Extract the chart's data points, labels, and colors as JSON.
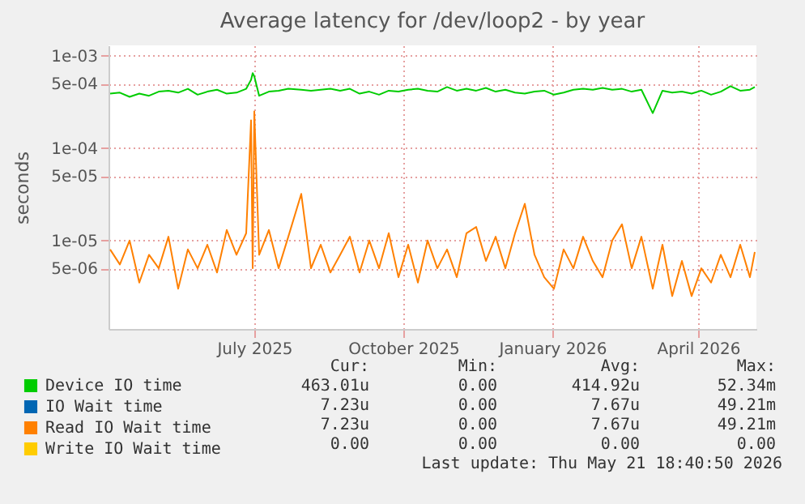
{
  "chart_data": {
    "type": "line",
    "title": "Average latency for /dev/loop2 - by year",
    "ylabel": "seconds",
    "log": "y",
    "grid": true,
    "legend": "bottom",
    "marker": "none",
    "line_style": "solid",
    "xlim": [
      "2025-04-16",
      "2026-05-21"
    ],
    "xticks": [
      {
        "value": "2025-07-15",
        "label": "July 2025"
      },
      {
        "value": "2025-10-15",
        "label": "October 2025"
      },
      {
        "value": "2026-01-15",
        "label": "January 2026"
      },
      {
        "value": "2026-04-15",
        "label": "April 2026"
      }
    ],
    "ylim": [
      1.1e-06,
      0.0013
    ],
    "yticks": [
      {
        "value": 5e-06,
        "label": "5e-06"
      },
      {
        "value": 1e-05,
        "label": "1e-05"
      },
      {
        "value": 5e-05,
        "label": "5e-05"
      },
      {
        "value": 0.0001,
        "label": "1e-04"
      },
      {
        "value": 0.0005,
        "label": "5e-04"
      },
      {
        "value": 0.001,
        "label": "1e-03"
      }
    ],
    "x": [
      "2025-04-17",
      "2025-04-23",
      "2025-04-29",
      "2025-05-05",
      "2025-05-11",
      "2025-05-17",
      "2025-05-23",
      "2025-05-29",
      "2025-06-04",
      "2025-06-10",
      "2025-06-16",
      "2025-06-22",
      "2025-06-28",
      "2025-07-04",
      "2025-07-10",
      "2025-07-13",
      "2025-07-14",
      "2025-07-15",
      "2025-07-18",
      "2025-07-24",
      "2025-07-30",
      "2025-08-05",
      "2025-08-13",
      "2025-08-19",
      "2025-08-25",
      "2025-08-31",
      "2025-09-06",
      "2025-09-12",
      "2025-09-18",
      "2025-09-24",
      "2025-09-30",
      "2025-10-06",
      "2025-10-12",
      "2025-10-18",
      "2025-10-24",
      "2025-10-30",
      "2025-11-05",
      "2025-11-11",
      "2025-11-17",
      "2025-11-23",
      "2025-11-29",
      "2025-12-05",
      "2025-12-11",
      "2025-12-17",
      "2025-12-23",
      "2025-12-29",
      "2026-01-04",
      "2026-01-10",
      "2026-01-16",
      "2026-01-22",
      "2026-01-28",
      "2026-02-03",
      "2026-02-09",
      "2026-02-15",
      "2026-02-21",
      "2026-02-27",
      "2026-03-05",
      "2026-03-11",
      "2026-03-18",
      "2026-03-24",
      "2026-03-30",
      "2026-04-05",
      "2026-04-11",
      "2026-04-17",
      "2026-04-23",
      "2026-04-29",
      "2026-05-05",
      "2026-05-11",
      "2026-05-17",
      "2026-05-20"
    ],
    "series": [
      {
        "name": "Device IO time",
        "color": "#00cc00",
        "values": [
          0.00039,
          0.0004,
          0.00036,
          0.00039,
          0.00037,
          0.00041,
          0.00042,
          0.0004,
          0.00044,
          0.00038,
          0.00041,
          0.00043,
          0.00039,
          0.0004,
          0.00044,
          0.00055,
          0.00065,
          0.0006,
          0.00037,
          0.00041,
          0.00042,
          0.00044,
          0.00043,
          0.00042,
          0.00043,
          0.00044,
          0.00042,
          0.00044,
          0.00039,
          0.00041,
          0.00038,
          0.00042,
          0.00041,
          0.00043,
          0.00044,
          0.00042,
          0.00041,
          0.00046,
          0.00042,
          0.00044,
          0.00042,
          0.00045,
          0.00041,
          0.00043,
          0.0004,
          0.00039,
          0.00041,
          0.00042,
          0.00038,
          0.0004,
          0.00043,
          0.00044,
          0.00043,
          0.00045,
          0.00043,
          0.00044,
          0.00041,
          0.00043,
          0.00024,
          0.00042,
          0.0004,
          0.00041,
          0.00039,
          0.00042,
          0.00038,
          0.00041,
          0.00047,
          0.00042,
          0.00043,
          0.00046
        ]
      },
      {
        "name": "IO Wait time",
        "color": "#0066b3",
        "values": [
          null,
          null,
          null,
          null,
          null,
          null,
          null,
          null,
          null,
          null,
          null,
          null,
          null,
          null,
          null,
          null,
          null,
          null,
          null,
          null,
          null,
          null,
          null,
          null,
          null,
          null,
          null,
          null,
          null,
          null,
          null,
          null,
          null,
          null,
          null,
          null,
          null,
          null,
          null,
          null,
          null,
          null,
          null,
          null,
          null,
          null,
          null,
          null,
          null,
          null,
          null,
          null,
          null,
          null,
          null,
          null,
          null,
          null,
          null,
          null,
          null,
          null,
          null,
          null,
          null,
          null,
          null,
          null,
          null,
          null
        ]
      },
      {
        "name": "Read IO Wait time",
        "color": "#ff8000",
        "values": [
          8e-06,
          5.5e-06,
          1e-05,
          3.5e-06,
          7e-06,
          5e-06,
          1.1e-05,
          3e-06,
          8e-06,
          5e-06,
          9e-06,
          4.5e-06,
          1.3e-05,
          7e-06,
          1.2e-05,
          0.0002,
          5e-06,
          0.00025,
          7e-06,
          1.3e-05,
          5e-06,
          1.1e-05,
          3.2e-05,
          5e-06,
          9e-06,
          4.5e-06,
          7e-06,
          1.1e-05,
          4.5e-06,
          1e-05,
          5e-06,
          1.2e-05,
          4e-06,
          9e-06,
          3.5e-06,
          1e-05,
          5e-06,
          8e-06,
          4e-06,
          1.2e-05,
          1.4e-05,
          6e-06,
          1.1e-05,
          5e-06,
          1.2e-05,
          2.5e-05,
          7e-06,
          4e-06,
          3e-06,
          8e-06,
          5e-06,
          1.1e-05,
          6e-06,
          4e-06,
          1e-05,
          1.5e-05,
          5e-06,
          1.1e-05,
          3e-06,
          9e-06,
          2.5e-06,
          6e-06,
          2.5e-06,
          5e-06,
          3.5e-06,
          7e-06,
          4e-06,
          9e-06,
          4e-06,
          7.5e-06
        ]
      },
      {
        "name": "Write IO Wait time",
        "color": "#ffcc00",
        "values": [
          null,
          null,
          null,
          null,
          null,
          null,
          null,
          null,
          null,
          null,
          null,
          null,
          null,
          null,
          null,
          null,
          null,
          null,
          null,
          null,
          null,
          null,
          null,
          null,
          null,
          null,
          null,
          null,
          null,
          null,
          null,
          null,
          null,
          null,
          null,
          null,
          null,
          null,
          null,
          null,
          null,
          null,
          null,
          null,
          null,
          null,
          null,
          null,
          null,
          null,
          null,
          null,
          null,
          null,
          null,
          null,
          null,
          null,
          null,
          null,
          null,
          null,
          null,
          null,
          null,
          null,
          null,
          null,
          null,
          null
        ]
      }
    ],
    "annotations": [
      "Cur:",
      "Min:",
      "Avg:",
      "Max:",
      "463.01u",
      "0.00",
      "414.92u",
      "52.34m",
      "7.23u",
      "0.00",
      "7.67u",
      "49.21m",
      "7.23u",
      "0.00",
      "7.67u",
      "49.21m",
      "0.00",
      "0.00",
      "0.00",
      "0.00",
      "Last update: Thu May 21 18:40:50 2026"
    ]
  }
}
